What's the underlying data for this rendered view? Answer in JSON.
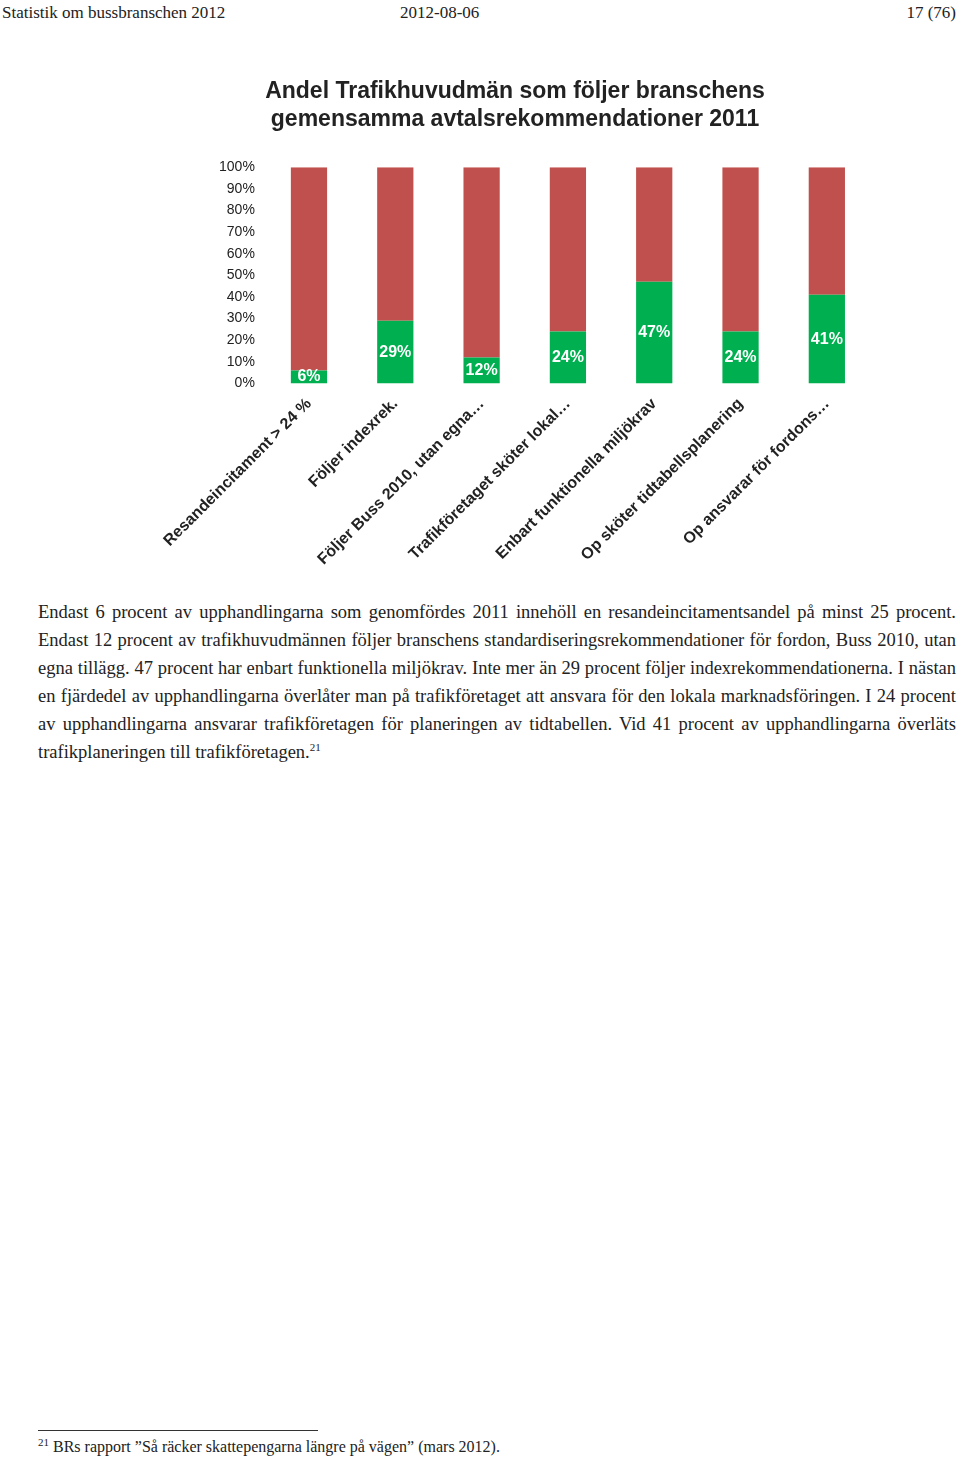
{
  "header": {
    "left": "Statistik om bussbranschen 2012",
    "center": "2012-08-06",
    "right": "17 (76)"
  },
  "chart_data": {
    "type": "bar",
    "title": [
      "Andel Trafikhuvudmän som följer branschens",
      "gemensamma avtalsrekommendationer 2011"
    ],
    "categories": [
      "Resandeincitament > 24 %",
      "Följer indexrek.",
      "Följer Buss 2010, utan egna…",
      "Trafikföretaget sköter lokal…",
      "Enbart funktionella miljökrav",
      "Op sköter tidtabellsplanering",
      "Op ansvarar för fordons…"
    ],
    "series": [
      {
        "color": "#00b050",
        "values": [
          6,
          29,
          12,
          24,
          47,
          24,
          41
        ],
        "value_labels": [
          "6%",
          "29%",
          "12%",
          "24%",
          "47%",
          "24%",
          "41%"
        ]
      },
      {
        "color": "#c0504d",
        "values": [
          94,
          71,
          88,
          76,
          53,
          76,
          59
        ]
      }
    ],
    "stacked": true,
    "data_labels": true,
    "grid": false,
    "ylim": [
      0,
      100
    ],
    "yticks": [
      {
        "value": 0,
        "label": "0%"
      },
      {
        "value": 10,
        "label": "10%"
      },
      {
        "value": 20,
        "label": "20%"
      },
      {
        "value": 30,
        "label": "30%"
      },
      {
        "value": 40,
        "label": "40%"
      },
      {
        "value": 50,
        "label": "50%"
      },
      {
        "value": 60,
        "label": "60%"
      },
      {
        "value": 70,
        "label": "70%"
      },
      {
        "value": 80,
        "label": "80%"
      },
      {
        "value": 90,
        "label": "90%"
      },
      {
        "value": 100,
        "label": "100%"
      }
    ]
  },
  "body": {
    "text": "Endast 6 procent av upphandlingarna som genomfördes 2011 innehöll en resandeincitamentsandel på minst 25 procent. Endast 12 procent av trafikhuvudmännen följer branschens standardiseringsrekommendationer för fordon, Buss 2010, utan egna tillägg. 47 procent har enbart funktionella miljökrav. Inte mer än 29 procent följer indexrekommendationerna. I nästan en fjärdedel av upphandlingarna överlåter man på trafikföretaget att ansvara för den lokala marknadsföringen. I 24 procent av upphandlingarna ansvarar trafikföretagen för planeringen av tidtabellen. Vid 41 procent av upphandlingarna överläts trafikplaneringen till trafikföretagen.",
    "footnote_ref": "21"
  },
  "footnote": {
    "number": "21",
    "text": "BRs rapport ”Så räcker skattepengarna längre på vägen” (mars 2012)."
  }
}
